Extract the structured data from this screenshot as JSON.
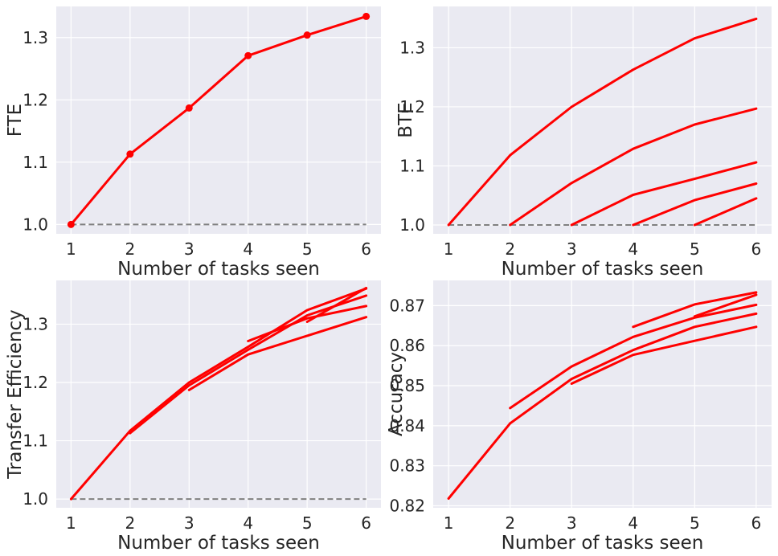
{
  "chart_data": [
    {
      "type": "line",
      "xlabel": "Number of tasks seen",
      "ylabel": "FTE",
      "xlim": [
        0.75,
        6.25
      ],
      "ylim": [
        0.985,
        1.35
      ],
      "xticks": [
        1,
        2,
        3,
        4,
        5,
        6
      ],
      "yticks": [
        1.0,
        1.1,
        1.2,
        1.3
      ],
      "ytick_labels": [
        "1.0",
        "1.1",
        "1.2",
        "1.3"
      ],
      "grid": true,
      "baseline": 1.0,
      "markers": true,
      "series": [
        {
          "x": [
            1,
            2,
            3,
            4,
            5,
            6
          ],
          "y": [
            1.0,
            1.113,
            1.187,
            1.271,
            1.304,
            1.334
          ]
        }
      ]
    },
    {
      "type": "line",
      "xlabel": "Number of tasks seen",
      "ylabel": "BTE",
      "xlim": [
        0.75,
        6.25
      ],
      "ylim": [
        0.985,
        1.37
      ],
      "xticks": [
        1,
        2,
        3,
        4,
        5,
        6
      ],
      "yticks": [
        1.0,
        1.1,
        1.2,
        1.3
      ],
      "ytick_labels": [
        "1.0",
        "1.1",
        "1.2",
        "1.3"
      ],
      "grid": true,
      "baseline": 1.0,
      "markers": false,
      "series": [
        {
          "x": [
            1,
            2,
            3,
            4,
            5,
            6
          ],
          "y": [
            1.0,
            1.118,
            1.2,
            1.263,
            1.316,
            1.349
          ]
        },
        {
          "x": [
            2,
            3,
            4,
            5,
            6
          ],
          "y": [
            1.0,
            1.071,
            1.129,
            1.17,
            1.197
          ]
        },
        {
          "x": [
            3,
            4,
            5,
            6
          ],
          "y": [
            1.0,
            1.051,
            1.078,
            1.106
          ]
        },
        {
          "x": [
            4,
            5,
            6
          ],
          "y": [
            1.0,
            1.042,
            1.07
          ]
        },
        {
          "x": [
            5,
            6
          ],
          "y": [
            1.0,
            1.045
          ]
        }
      ]
    },
    {
      "type": "line",
      "xlabel": "Number of tasks seen",
      "ylabel": "Transfer Efficiency",
      "xlim": [
        0.75,
        6.25
      ],
      "ylim": [
        0.985,
        1.375
      ],
      "xticks": [
        1,
        2,
        3,
        4,
        5,
        6
      ],
      "yticks": [
        1.0,
        1.1,
        1.2,
        1.3
      ],
      "ytick_labels": [
        "1.0",
        "1.1",
        "1.2",
        "1.3"
      ],
      "grid": true,
      "baseline": 1.0,
      "markers": false,
      "series": [
        {
          "x": [
            1,
            2,
            3,
            4,
            5,
            6
          ],
          "y": [
            1.0,
            1.117,
            1.2,
            1.261,
            1.324,
            1.361
          ]
        },
        {
          "x": [
            2,
            3,
            4,
            5,
            6
          ],
          "y": [
            1.113,
            1.195,
            1.256,
            1.315,
            1.349
          ]
        },
        {
          "x": [
            3,
            4,
            5,
            6
          ],
          "y": [
            1.187,
            1.248,
            1.28,
            1.312
          ]
        },
        {
          "x": [
            4,
            5,
            6
          ],
          "y": [
            1.271,
            1.31,
            1.331
          ]
        },
        {
          "x": [
            5,
            6
          ],
          "y": [
            1.304,
            1.362
          ]
        }
      ]
    },
    {
      "type": "line",
      "xlabel": "Number of tasks seen",
      "ylabel": "Accuracy",
      "xlim": [
        0.75,
        6.25
      ],
      "ylim": [
        0.8195,
        0.8763
      ],
      "xticks": [
        1,
        2,
        3,
        4,
        5,
        6
      ],
      "yticks": [
        0.82,
        0.83,
        0.84,
        0.85,
        0.86,
        0.87
      ],
      "ytick_labels": [
        "0.82",
        "0.83",
        "0.84",
        "0.85",
        "0.86",
        "0.87"
      ],
      "grid": true,
      "markers": false,
      "series": [
        {
          "x": [
            1,
            2,
            3,
            4,
            5,
            6
          ],
          "y": [
            0.8218,
            0.8406,
            0.8517,
            0.8589,
            0.8647,
            0.868
          ]
        },
        {
          "x": [
            2,
            3,
            4,
            5,
            6
          ],
          "y": [
            0.8444,
            0.8548,
            0.8622,
            0.867,
            0.8702
          ]
        },
        {
          "x": [
            3,
            4,
            5,
            6
          ],
          "y": [
            0.8505,
            0.8577,
            0.8612,
            0.8647
          ]
        },
        {
          "x": [
            4,
            5,
            6
          ],
          "y": [
            0.8647,
            0.8703,
            0.8733
          ]
        },
        {
          "x": [
            5,
            6
          ],
          "y": [
            0.8673,
            0.8727
          ]
        }
      ]
    }
  ]
}
